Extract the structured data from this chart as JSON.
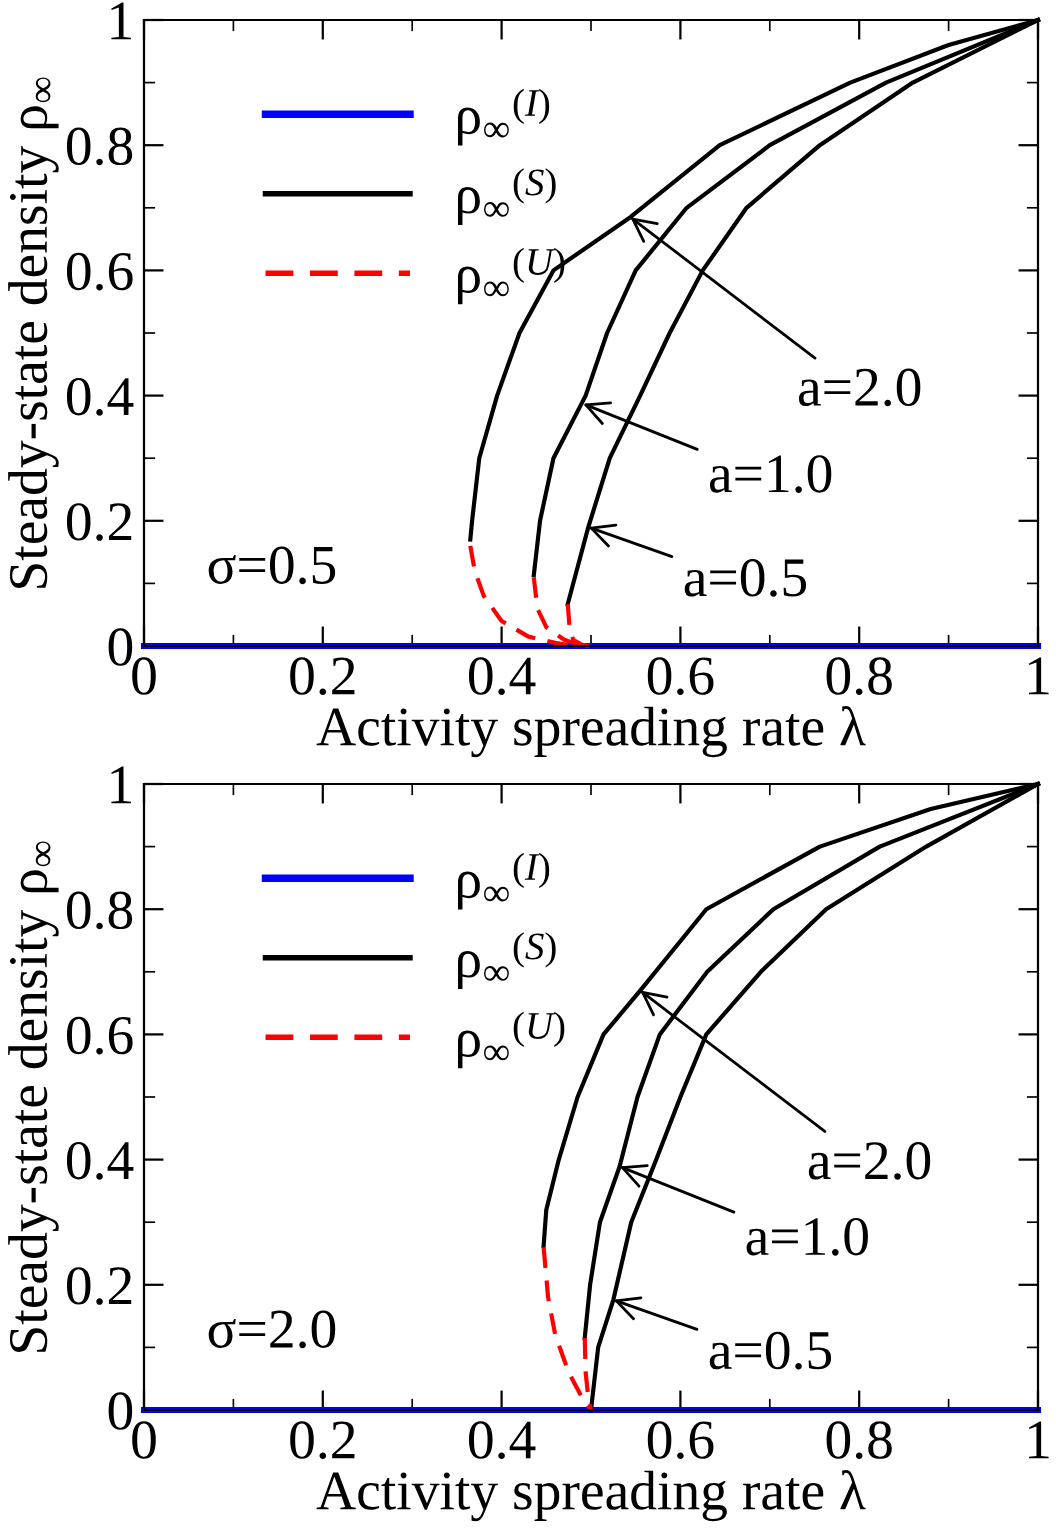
{
  "chart_data": [
    {
      "type": "line",
      "xlabel": "Activity spreading rate λ",
      "ylabel": "Steady-state density ρ$_{∞}$",
      "xlim": [
        0,
        1
      ],
      "ylim": [
        0,
        1
      ],
      "xticks": [
        0,
        0.2,
        0.4,
        0.6,
        0.8,
        1
      ],
      "yticks": [
        0,
        0.2,
        0.4,
        0.6,
        0.8,
        1
      ],
      "grid": false,
      "legend": "top left",
      "marker": "none",
      "annotations": [
        "σ=0.5",
        {
          "text": "a=2.0",
          "x": 0.544,
          "y": 0.685
        },
        {
          "text": "a=1.0",
          "x": 0.491,
          "y": 0.387
        },
        {
          "text": "a=0.5",
          "x": 0.497,
          "y": 0.19
        }
      ],
      "series": [
        {
          "name": "ρ$_{∞}$$^{(I)}$",
          "color": "#0000ff",
          "line_style": "solid",
          "x": [
            0,
            1
          ],
          "values": [
            0,
            0
          ]
        },
        {
          "name": "ρ$_{∞}$$^{(S)}$",
          "color": "#000000",
          "line_style": "solid",
          "x": [
            0.365,
            0.367,
            0.375,
            0.395,
            0.42,
            0.458,
            0.544,
            0.644,
            0.79,
            0.9,
            1
          ],
          "values": [
            0.17,
            0.2,
            0.3,
            0.4,
            0.5,
            0.6,
            0.685,
            0.8,
            0.9,
            0.96,
            1
          ]
        },
        {
          "color": "#000000",
          "line_style": "solid",
          "x": [
            0.436,
            0.443,
            0.458,
            0.494,
            0.518,
            0.55,
            0.607,
            0.7,
            0.83,
            1
          ],
          "values": [
            0.113,
            0.2,
            0.3,
            0.4,
            0.5,
            0.6,
            0.7,
            0.8,
            0.9,
            1
          ]
        },
        {
          "color": "#000000",
          "line_style": "solid",
          "x": [
            0.474,
            0.497,
            0.521,
            0.555,
            0.588,
            0.625,
            0.674,
            0.756,
            0.86,
            1
          ],
          "values": [
            0.067,
            0.19,
            0.3,
            0.4,
            0.5,
            0.6,
            0.7,
            0.8,
            0.9,
            1
          ]
        },
        {
          "name": "ρ$_{∞}$$^{(U)}$",
          "color": "#ff0000",
          "line_style": "dashed",
          "x": [
            0.365,
            0.37,
            0.38,
            0.4,
            0.43,
            0.46,
            0.48
          ],
          "values": [
            0.16,
            0.12,
            0.08,
            0.04,
            0.015,
            0.005,
            0
          ]
        },
        {
          "color": "#ff0000",
          "line_style": "dashed",
          "x": [
            0.436,
            0.44,
            0.45,
            0.47,
            0.49
          ],
          "values": [
            0.11,
            0.06,
            0.03,
            0.01,
            0
          ]
        },
        {
          "color": "#ff0000",
          "line_style": "dashed",
          "x": [
            0.474,
            0.476,
            0.48,
            0.49,
            0.5
          ],
          "values": [
            0.067,
            0.03,
            0.01,
            0.002,
            0
          ]
        }
      ]
    },
    {
      "type": "line",
      "xlabel": "Activity spreading rate λ",
      "ylabel": "Steady-state density ρ$_{∞}$",
      "xlim": [
        0,
        1
      ],
      "ylim": [
        0,
        1
      ],
      "xticks": [
        0,
        0.2,
        0.4,
        0.6,
        0.8,
        1
      ],
      "yticks": [
        0,
        0.2,
        0.4,
        0.6,
        0.8,
        1
      ],
      "grid": false,
      "legend": "top left",
      "marker": "none",
      "annotations": [
        "σ=2.0",
        {
          "text": "a=2.0",
          "x": 0.555,
          "y": 0.67
        },
        {
          "text": "a=1.0",
          "x": 0.532,
          "y": 0.389
        },
        {
          "text": "a=0.5",
          "x": 0.525,
          "y": 0.176
        }
      ],
      "series": [
        {
          "name": "ρ$_{∞}$$^{(I)}$",
          "color": "#0000ff",
          "line_style": "solid",
          "x": [
            0,
            1
          ],
          "values": [
            0,
            0
          ]
        },
        {
          "name": "ρ$_{∞}$$^{(S)}$",
          "color": "#000000",
          "line_style": "solid",
          "x": [
            0.447,
            0.45,
            0.464,
            0.485,
            0.514,
            0.555,
            0.629,
            0.756,
            0.88,
            1
          ],
          "values": [
            0.262,
            0.32,
            0.4,
            0.5,
            0.6,
            0.67,
            0.8,
            0.9,
            0.96,
            1
          ]
        },
        {
          "color": "#000000",
          "line_style": "solid",
          "x": [
            0.493,
            0.499,
            0.51,
            0.532,
            0.552,
            0.577,
            0.63,
            0.704,
            0.823,
            1
          ],
          "values": [
            0.115,
            0.2,
            0.3,
            0.389,
            0.5,
            0.6,
            0.7,
            0.8,
            0.9,
            1
          ]
        },
        {
          "color": "#000000",
          "line_style": "solid",
          "x": [
            0.5,
            0.508,
            0.525,
            0.545,
            0.573,
            0.6,
            0.629,
            0.69,
            0.763,
            0.875,
            1
          ],
          "values": [
            0,
            0.1,
            0.176,
            0.3,
            0.4,
            0.5,
            0.6,
            0.7,
            0.8,
            0.9,
            1
          ]
        },
        {
          "name": "ρ$_{∞}$$^{(U)}$",
          "color": "#ff0000",
          "line_style": "dashed",
          "x": [
            0.447,
            0.452,
            0.46,
            0.475,
            0.49,
            0.5
          ],
          "values": [
            0.26,
            0.18,
            0.12,
            0.06,
            0.02,
            0
          ]
        },
        {
          "color": "#ff0000",
          "line_style": "dashed",
          "x": [
            0.493,
            0.494,
            0.497,
            0.5
          ],
          "values": [
            0.115,
            0.06,
            0.02,
            0
          ]
        }
      ]
    }
  ]
}
